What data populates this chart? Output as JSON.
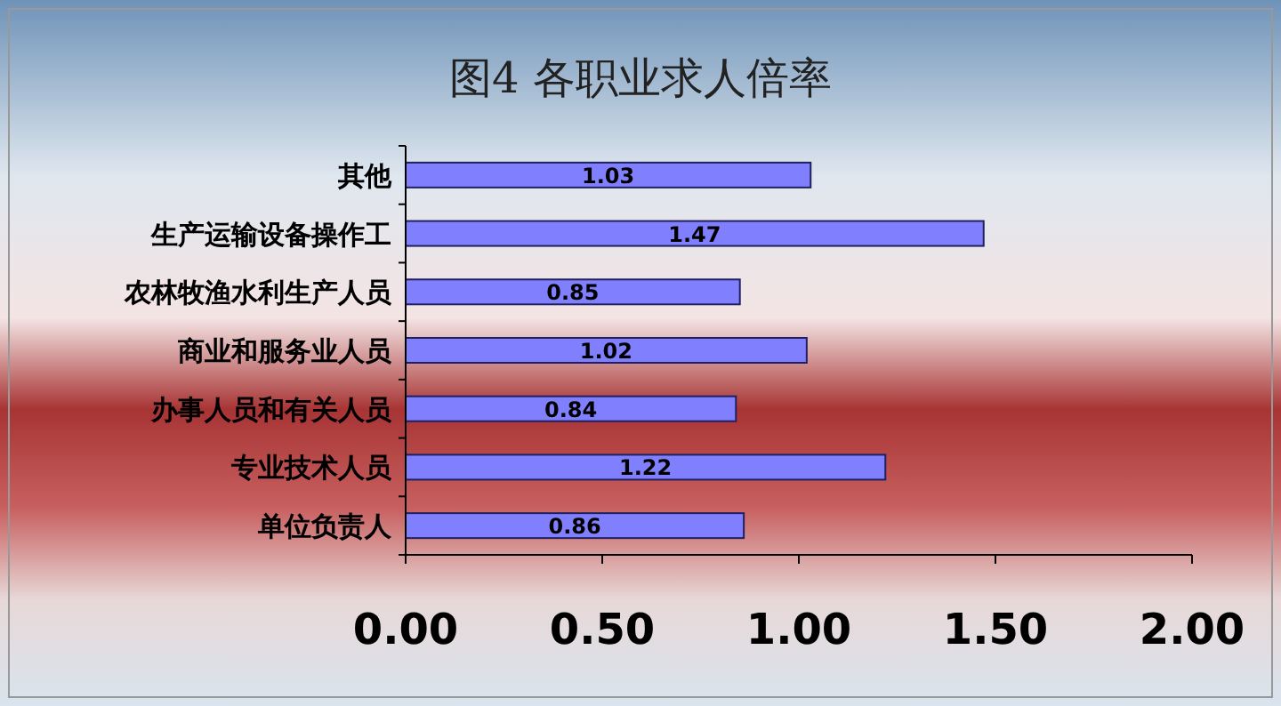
{
  "chart_data": {
    "type": "bar",
    "orientation": "horizontal",
    "title": "图4  各职业求人倍率",
    "categories": [
      "其他",
      "生产运输设备操作工",
      "农林牧渔水利生产人员",
      "商业和服务业人员",
      "办事人员和有关人员",
      "专业技术人员",
      "单位负责人"
    ],
    "values": [
      1.03,
      1.47,
      0.85,
      1.02,
      0.84,
      1.22,
      0.86
    ],
    "color": "#8080ff",
    "xlim": [
      0,
      2
    ],
    "xticks": [
      {
        "value": 0,
        "label": "0.00"
      },
      {
        "value": 0.5,
        "label": "0.50"
      },
      {
        "value": 1,
        "label": "1.00"
      },
      {
        "value": 1.5,
        "label": "1.50"
      },
      {
        "value": 2,
        "label": "2.00"
      }
    ],
    "data_labels": true,
    "grid": false
  }
}
